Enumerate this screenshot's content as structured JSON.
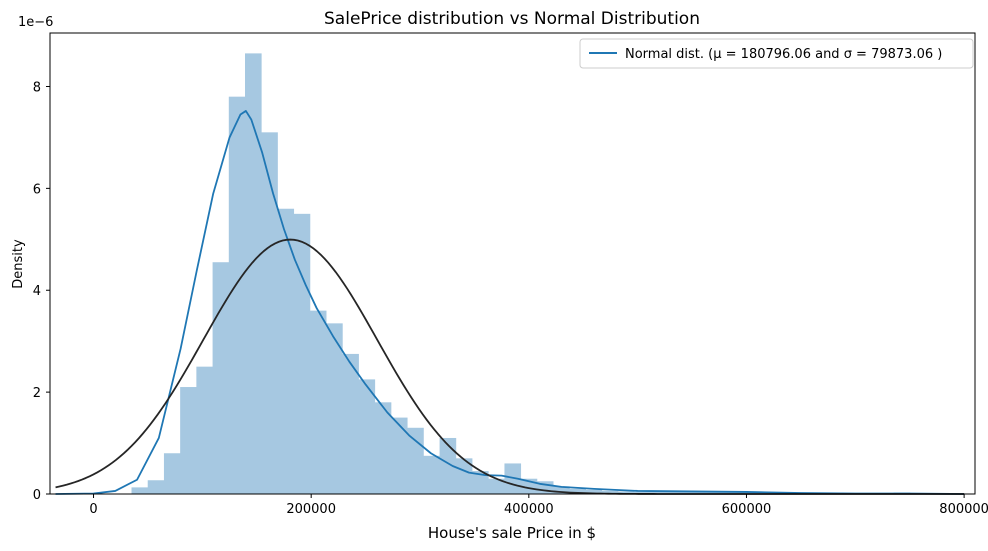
{
  "chart_data": {
    "type": "bar",
    "title": "SalePrice distribution vs Normal Distribution",
    "xlabel": "House's sale Price in $",
    "ylabel": "Density",
    "y_offset_label": "1e−6",
    "xlim": [
      -40000,
      810000
    ],
    "ylim": [
      0,
      9.05
    ],
    "y_unit_multiplier": 1e-06,
    "xticks": [
      0,
      200000,
      400000,
      600000,
      800000
    ],
    "xtick_labels": [
      "0",
      "200000",
      "400000",
      "600000",
      "800000"
    ],
    "yticks": [
      0,
      2,
      4,
      6,
      8
    ],
    "ytick_labels": [
      "0",
      "2",
      "4",
      "6",
      "8"
    ],
    "legend_position": "top-right",
    "legend": {
      "entries": [
        {
          "label": "Normal dist. ($\\mu=$ 180796.06 and $\\sigma=$ 79873.06 )",
          "display": "Normal dist. (μ =  180796.06 and σ =  79873.06 )",
          "color": "#1f77b4"
        }
      ]
    },
    "colors": {
      "histogram": "#a6c8e1",
      "kde": "#1f77b4",
      "normal_fit": "#262626"
    },
    "histogram": {
      "bin_width": 14900,
      "bin_starts": [
        34900,
        49800,
        64700,
        79600,
        94500,
        109400,
        124300,
        139200,
        154100,
        169000,
        183900,
        198800,
        213700,
        228600,
        243500,
        258400,
        273300,
        288200,
        303100,
        318000,
        332900,
        347800,
        362700,
        377600,
        392500,
        407400,
        422300,
        437200,
        452100,
        467000,
        481900,
        496800,
        511700,
        526600,
        541500,
        556400,
        571300,
        586200,
        601100,
        616000,
        630900,
        645800,
        660700,
        675600,
        690500,
        705400,
        720300,
        735200,
        750100
      ],
      "densities": [
        0.13,
        0.27,
        0.8,
        2.1,
        2.5,
        4.55,
        7.8,
        8.65,
        7.1,
        5.6,
        5.5,
        3.6,
        3.35,
        2.75,
        2.25,
        1.8,
        1.5,
        1.3,
        0.75,
        1.1,
        0.7,
        0.45,
        0.3,
        0.6,
        0.3,
        0.25,
        0.15,
        0.1,
        0.08,
        0.06,
        0.05,
        0.04,
        0.04,
        0.06,
        0.05,
        0.05,
        0.04,
        0.04,
        0.05,
        0.03,
        0.02,
        0.0,
        0.01,
        0.0,
        0.0,
        0.0,
        0.0,
        0.03,
        0.02
      ]
    },
    "series": [
      {
        "name": "Normal dist. ($\\mu=$ 180796.06 and $\\sigma=$ 79873.06 )",
        "kind": "normal",
        "mu": 180796.06,
        "sigma": 79873.06,
        "x_range": [
          -34900,
          800000
        ]
      },
      {
        "kind": "kde",
        "x": [
          -34900,
          0,
          20000,
          40000,
          60000,
          80000,
          95000,
          110000,
          125000,
          135000,
          140000,
          145000,
          155000,
          165000,
          175000,
          185000,
          195000,
          205000,
          220000,
          235000,
          250000,
          270000,
          290000,
          310000,
          330000,
          345000,
          360000,
          375000,
          390000,
          410000,
          430000,
          460000,
          500000,
          550000,
          600000,
          650000,
          700000,
          750000,
          800000
        ],
        "y": [
          0.0,
          0.01,
          0.06,
          0.28,
          1.1,
          2.85,
          4.4,
          5.9,
          7.0,
          7.45,
          7.52,
          7.35,
          6.7,
          5.9,
          5.2,
          4.6,
          4.1,
          3.65,
          3.1,
          2.6,
          2.15,
          1.6,
          1.15,
          0.8,
          0.55,
          0.42,
          0.37,
          0.36,
          0.3,
          0.2,
          0.14,
          0.1,
          0.06,
          0.05,
          0.04,
          0.02,
          0.01,
          0.01,
          0.0
        ]
      }
    ]
  }
}
